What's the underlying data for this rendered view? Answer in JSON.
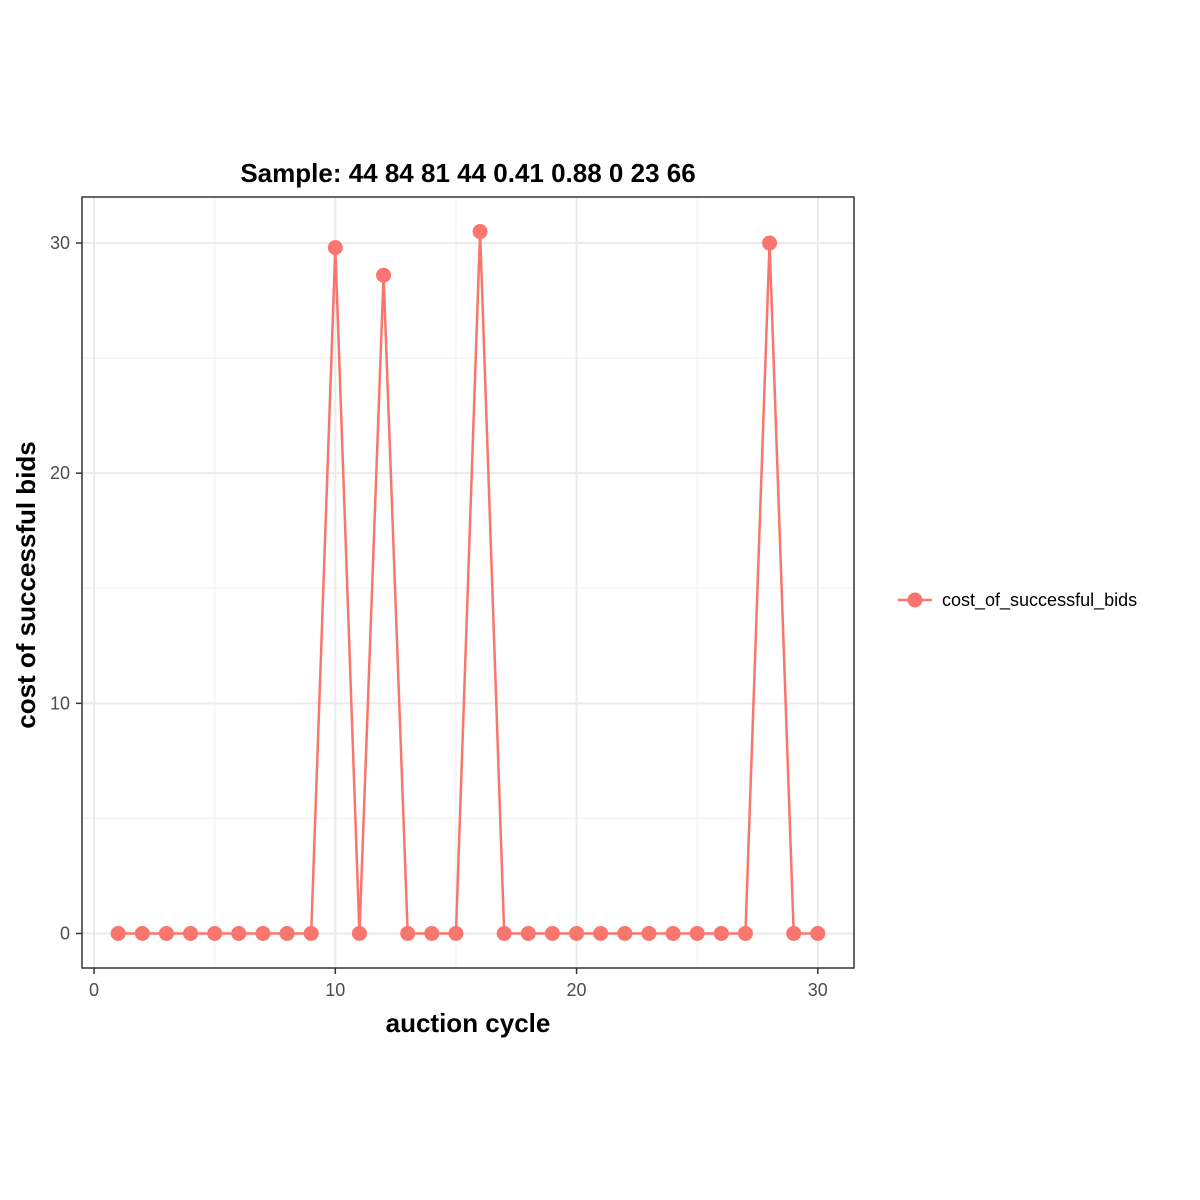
{
  "chart_data": {
    "type": "line",
    "title": "Sample: 44 84 81 44 0.41 0.88 0 23 66",
    "xlabel": "auction cycle",
    "ylabel": "cost of successful bids",
    "xlim": [
      -0.5,
      31.5
    ],
    "ylim": [
      -1.5,
      32.0
    ],
    "x_ticks": [
      0,
      10,
      20,
      30
    ],
    "y_ticks": [
      0,
      10,
      20,
      30
    ],
    "grid": true,
    "legend_position": "right",
    "series": [
      {
        "name": "cost_of_successful_bids",
        "color": "#F8766D",
        "x": [
          1,
          2,
          3,
          4,
          5,
          6,
          7,
          8,
          9,
          10,
          11,
          12,
          13,
          14,
          15,
          16,
          17,
          18,
          19,
          20,
          21,
          22,
          23,
          24,
          25,
          26,
          27,
          28,
          29,
          30
        ],
        "y": [
          0,
          0,
          0,
          0,
          0,
          0,
          0,
          0,
          0,
          29.8,
          0,
          28.6,
          0,
          0,
          0,
          30.5,
          0,
          0,
          0,
          0,
          0,
          0,
          0,
          0,
          0,
          0,
          0,
          30.0,
          0,
          0
        ]
      }
    ]
  }
}
